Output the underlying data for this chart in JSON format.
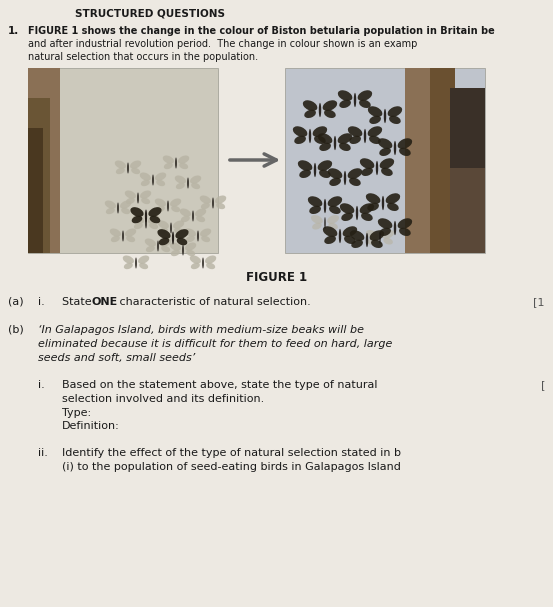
{
  "bg_color": "#ede9e2",
  "title_text": "STRUCTURED QUESTIONS",
  "q1_intro_line1": "FIGURE 1 shows the change in the colour of Biston betularia population in Britain be",
  "q1_intro_line2": "and after industrial revolution period.  The change in colour shown is an examp",
  "q1_intro_line3": "natural selection that occurs in the population.",
  "figure_label": "FIGURE 1",
  "qa_text_normal": "State ",
  "qa_text_bold": "ONE",
  "qa_text_rest": " characteristic of natural selection.",
  "qa_marks": "[1",
  "qb_line1": "‘In Galapagos Island, birds with medium-size beaks will be",
  "qb_line2": "eliminated because it is difficult for them to feed on hard, large",
  "qb_line3": "seeds and soft, small seeds’",
  "qbi_line1": "Based on the statement above, state the type of natural",
  "qbi_line2": "selection involved and its definition.",
  "qbi_line3": "Type:",
  "qbi_line4": "Definition:",
  "qbii_line1": "Identify the effect of the type of natural selection stated in b",
  "qbii_line2": "(i) to the population of seed-eating birds in Galapagos Island",
  "left_panel_bg": "#ccc9bc",
  "right_panel_bg": "#bfc4cc",
  "tree_brown": "#8a7055",
  "tree_dark": "#5a4530",
  "bark_dark": "#3a3028",
  "arrow_color": "#666666",
  "butterfly_light": "#b8b4a4",
  "butterfly_dark": "#252015",
  "text_color": "#1a1a1a"
}
